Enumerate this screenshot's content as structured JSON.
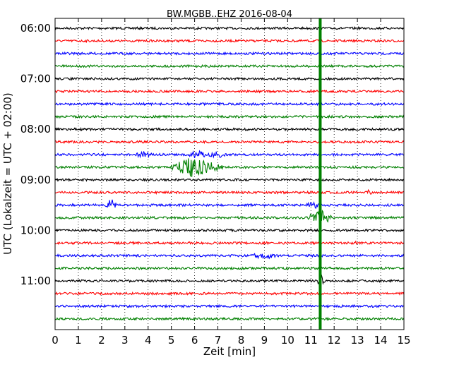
{
  "chart_data": {
    "type": "line",
    "title": "BW.MGBB..EHZ 2016-08-04",
    "xlabel": "Zeit  [min]",
    "ylabel": "UTC (Lokalzeit = UTC + 02:00)",
    "xlim": [
      0,
      15
    ],
    "xticks": [
      "0",
      "1",
      "2",
      "3",
      "4",
      "5",
      "6",
      "7",
      "8",
      "9",
      "10",
      "11",
      "12",
      "13",
      "14",
      "15"
    ],
    "yticks": [
      "06:00",
      "07:00",
      "08:00",
      "09:00",
      "10:00",
      "11:00"
    ],
    "grid": "vertical dotted",
    "trace_interval_min": 15,
    "trace_start": "06:00",
    "trace_count": 24,
    "trace_colors": [
      "#000000",
      "#ff0000",
      "#0000ff",
      "#008000"
    ],
    "events": [
      {
        "trace": 11,
        "time_min": 5.7,
        "amp": 5.0,
        "dur": 0.8
      },
      {
        "trace": 11,
        "time_min": 6.4,
        "amp": 4.0,
        "dur": 0.9
      },
      {
        "trace": 10,
        "time_min": 3.8,
        "amp": 1.8,
        "dur": 0.4
      },
      {
        "trace": 10,
        "time_min": 6.1,
        "amp": 2.2,
        "dur": 0.5
      },
      {
        "trace": 10,
        "time_min": 7.0,
        "amp": 1.8,
        "dur": 0.5
      },
      {
        "trace": 14,
        "time_min": 2.4,
        "amp": 3.5,
        "dur": 0.3
      },
      {
        "trace": 14,
        "time_min": 11.1,
        "amp": 2.2,
        "dur": 0.3
      },
      {
        "trace": 15,
        "time_min": 11.4,
        "amp": 5.0,
        "dur": 0.6
      },
      {
        "trace": 18,
        "time_min": 9.0,
        "amp": 1.8,
        "dur": 0.6
      },
      {
        "trace": 13,
        "time_min": 13.5,
        "amp": 1.2,
        "dur": 0.2
      },
      {
        "trace": 17,
        "time_min": 12.8,
        "amp": 1.0,
        "dur": 0.2
      },
      {
        "trace": 20,
        "time_min": 11.4,
        "amp": 4.0,
        "dur": 0.2
      }
    ],
    "spike": {
      "time_min": 11.4,
      "color": "#008000"
    }
  }
}
